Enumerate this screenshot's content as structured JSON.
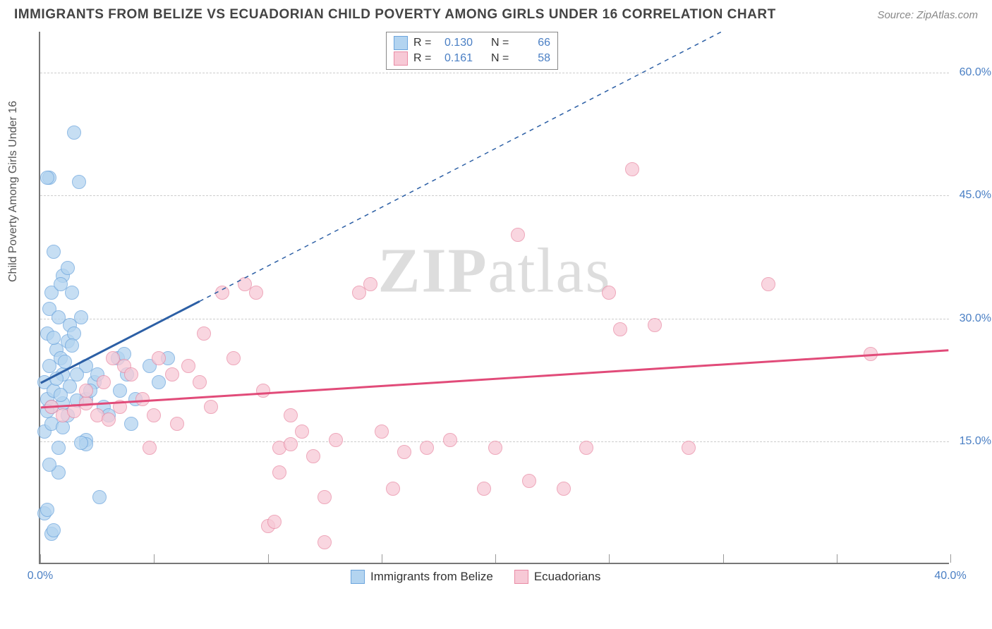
{
  "title": "IMMIGRANTS FROM BELIZE VS ECUADORIAN CHILD POVERTY AMONG GIRLS UNDER 16 CORRELATION CHART",
  "source": "Source: ZipAtlas.com",
  "y_axis_label": "Child Poverty Among Girls Under 16",
  "watermark_prefix": "ZIP",
  "watermark_suffix": "atlas",
  "chart": {
    "type": "scatter",
    "xlim": [
      0,
      40
    ],
    "ylim": [
      0,
      65
    ],
    "x_ticks": [
      0,
      20,
      40
    ],
    "x_tick_labels": [
      "0.0%",
      "",
      "40.0%"
    ],
    "x_minor_ticks": [
      5,
      10,
      15,
      25,
      30,
      35
    ],
    "y_ticks": [
      15,
      30,
      45,
      60
    ],
    "y_tick_labels": [
      "15.0%",
      "30.0%",
      "45.0%",
      "60.0%"
    ],
    "background_color": "#ffffff",
    "grid_color": "#cccccc",
    "axis_color": "#777777",
    "point_radius": 10,
    "series": [
      {
        "name": "Immigrants from Belize",
        "fill": "#b3d4f0",
        "stroke": "#6ca5dd",
        "line_color": "#2c5fa5",
        "R_label": "R =",
        "R": "0.130",
        "N_label": "N =",
        "N": "66",
        "trend_solid": {
          "x1": 0,
          "y1": 22,
          "x2": 7,
          "y2": 32
        },
        "trend_dash": {
          "x1": 7,
          "y1": 32,
          "x2": 30,
          "y2": 65
        },
        "points": [
          [
            0.3,
            20
          ],
          [
            0.2,
            22
          ],
          [
            0.5,
            19
          ],
          [
            0.4,
            24
          ],
          [
            0.6,
            21
          ],
          [
            0.7,
            26
          ],
          [
            0.3,
            28
          ],
          [
            0.9,
            25
          ],
          [
            1.0,
            23
          ],
          [
            1.2,
            27
          ],
          [
            1.3,
            29
          ],
          [
            0.4,
            31
          ],
          [
            0.8,
            30
          ],
          [
            1.5,
            28
          ],
          [
            0.5,
            33
          ],
          [
            1.0,
            35
          ],
          [
            1.2,
            36
          ],
          [
            0.6,
            38
          ],
          [
            0.9,
            34
          ],
          [
            1.4,
            33
          ],
          [
            1.8,
            30
          ],
          [
            2.0,
            24
          ],
          [
            1.6,
            23
          ],
          [
            2.4,
            22
          ],
          [
            2.0,
            20
          ],
          [
            2.8,
            19
          ],
          [
            3.0,
            18
          ],
          [
            3.5,
            21
          ],
          [
            3.4,
            25
          ],
          [
            3.8,
            23
          ],
          [
            4.2,
            20
          ],
          [
            4.8,
            24
          ],
          [
            5.2,
            22
          ],
          [
            5.6,
            25
          ],
          [
            4.0,
            17
          ],
          [
            0.2,
            16
          ],
          [
            0.5,
            17
          ],
          [
            0.8,
            11
          ],
          [
            0.4,
            12
          ],
          [
            2.0,
            15
          ],
          [
            2.0,
            14.5
          ],
          [
            1.8,
            14.6
          ],
          [
            2.6,
            8
          ],
          [
            0.5,
            3.5
          ],
          [
            0.6,
            4
          ],
          [
            0.2,
            6
          ],
          [
            0.3,
            6.5
          ],
          [
            0.4,
            47
          ],
          [
            0.3,
            47
          ],
          [
            1.7,
            46.5
          ],
          [
            1.5,
            52.5
          ],
          [
            0.3,
            18.5
          ],
          [
            1.0,
            19.5
          ],
          [
            1.3,
            21.5
          ],
          [
            0.7,
            22.5
          ],
          [
            0.9,
            20.5
          ],
          [
            1.1,
            24.5
          ],
          [
            1.4,
            26.5
          ],
          [
            0.6,
            27.5
          ],
          [
            0.8,
            14
          ],
          [
            1.0,
            16.5
          ],
          [
            1.2,
            18
          ],
          [
            1.6,
            19.8
          ],
          [
            2.2,
            21
          ],
          [
            2.5,
            23
          ],
          [
            3.7,
            25.5
          ]
        ]
      },
      {
        "name": "Ecuadorians",
        "fill": "#f7c9d6",
        "stroke": "#e98ba5",
        "line_color": "#e14b79",
        "R_label": "R =",
        "R": "0.161",
        "N_label": "N =",
        "N": "58",
        "trend_solid": {
          "x1": 0,
          "y1": 19,
          "x2": 40,
          "y2": 26
        },
        "trend_dash": null,
        "points": [
          [
            0.5,
            19
          ],
          [
            1.0,
            18
          ],
          [
            1.5,
            18.5
          ],
          [
            2.0,
            19.5
          ],
          [
            2.0,
            21
          ],
          [
            2.5,
            18
          ],
          [
            2.8,
            22
          ],
          [
            3.0,
            17.5
          ],
          [
            3.5,
            19
          ],
          [
            3.2,
            25
          ],
          [
            3.7,
            24
          ],
          [
            4.0,
            23
          ],
          [
            4.5,
            20
          ],
          [
            5.0,
            18
          ],
          [
            5.2,
            25
          ],
          [
            5.8,
            23
          ],
          [
            6.0,
            17
          ],
          [
            6.5,
            24
          ],
          [
            7.0,
            22
          ],
          [
            7.2,
            28
          ],
          [
            7.5,
            19
          ],
          [
            8.0,
            33
          ],
          [
            8.5,
            25
          ],
          [
            9.0,
            34
          ],
          [
            9.5,
            33
          ],
          [
            9.8,
            21
          ],
          [
            10.5,
            14
          ],
          [
            10.5,
            11
          ],
          [
            10.0,
            4.5
          ],
          [
            10.3,
            5
          ],
          [
            11.0,
            18
          ],
          [
            11.0,
            14.5
          ],
          [
            11.5,
            16
          ],
          [
            12.0,
            13
          ],
          [
            12.5,
            8
          ],
          [
            13.0,
            15
          ],
          [
            14.0,
            33
          ],
          [
            14.5,
            34
          ],
          [
            15.0,
            16
          ],
          [
            15.5,
            9
          ],
          [
            16.0,
            13.5
          ],
          [
            17.0,
            14
          ],
          [
            18.0,
            15
          ],
          [
            19.5,
            9
          ],
          [
            20.0,
            14
          ],
          [
            12.5,
            2.5
          ],
          [
            21.0,
            40
          ],
          [
            21.5,
            10
          ],
          [
            23.0,
            9
          ],
          [
            24.0,
            14
          ],
          [
            25.0,
            33
          ],
          [
            25.5,
            28.5
          ],
          [
            26.0,
            48
          ],
          [
            27.0,
            29
          ],
          [
            28.5,
            14
          ],
          [
            32.0,
            34
          ],
          [
            36.5,
            25.5
          ],
          [
            4.8,
            14
          ]
        ]
      }
    ]
  },
  "legend_bottom": [
    {
      "label": "Immigrants from Belize",
      "fill": "#b3d4f0",
      "stroke": "#6ca5dd"
    },
    {
      "label": "Ecuadorians",
      "fill": "#f7c9d6",
      "stroke": "#e98ba5"
    }
  ]
}
